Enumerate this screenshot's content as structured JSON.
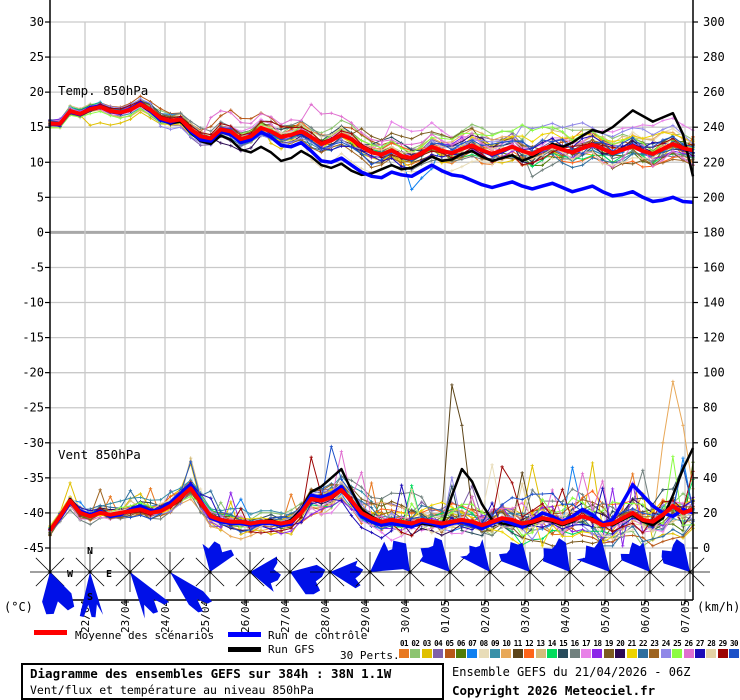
{
  "titles": {
    "temp_panel": "Temp. 850hPa",
    "wind_panel": "Vent 850hPa"
  },
  "axes": {
    "left_unit": "(°C)",
    "right_unit": "(km/h)",
    "left_ticks": [
      "30",
      "25",
      "20",
      "15",
      "10",
      "5",
      "0",
      "-5",
      "-10",
      "-15",
      "-20",
      "-25",
      "-30",
      "-35",
      "-40",
      "-45"
    ],
    "right_ticks": [
      "300",
      "280",
      "260",
      "240",
      "220",
      "200",
      "180",
      "160",
      "140",
      "120",
      "100",
      "80",
      "60",
      "40",
      "20",
      "0"
    ],
    "dates": [
      "22/04",
      "23/04",
      "24/04",
      "25/04",
      "26/04",
      "27/04",
      "28/04",
      "29/04",
      "30/04",
      "01/05",
      "02/05",
      "03/05",
      "04/05",
      "05/05",
      "06/05",
      "07/05"
    ],
    "compass": {
      "n": "N",
      "w": "W",
      "e": "E",
      "s": "S"
    }
  },
  "legend": {
    "mean_label": "Moyenne des scénarios",
    "control_label": "Run de contrôle",
    "gfs_label": "Run GFS",
    "perts_label": "30 Perts.",
    "mean_color": "#ff0000",
    "control_color": "#0000ff",
    "gfs_color": "#000000",
    "pert_numbers": [
      "01",
      "02",
      "03",
      "04",
      "05",
      "06",
      "07",
      "08",
      "09",
      "10",
      "11",
      "12",
      "13",
      "14",
      "15",
      "16",
      "17",
      "18",
      "19",
      "20",
      "21",
      "22",
      "23",
      "24",
      "25",
      "26",
      "27",
      "28",
      "29",
      "30"
    ],
    "pert_colors": [
      "#e87820",
      "#8cc470",
      "#e0c000",
      "#8060a8",
      "#b85818",
      "#507c08",
      "#1080f0",
      "#e8dcb8",
      "#3890a8",
      "#e8a858",
      "#5c4418",
      "#ff6418",
      "#d4bc7c",
      "#00dc5c",
      "#284c5c",
      "#70807e",
      "#e882e8",
      "#8c24e8",
      "#7c5c20",
      "#2c0a54",
      "#eed400",
      "#2e6e9e",
      "#9e6420",
      "#9088e8",
      "#8cfc44",
      "#e070d0",
      "#1c0cb8",
      "#e4d2a4",
      "#9c0404",
      "#1c50c8"
    ]
  },
  "footer": {
    "title": "Diagramme des ensembles GEFS sur 384h : 38N 1.1W",
    "subtitle": "Vent/flux et température au niveau 850hPa",
    "run_info": "Ensemble GEFS du 21/04/2026 - 06Z",
    "copyright": "Copyright 2026 Meteociel.fr"
  },
  "chart_data": [
    {
      "type": "line",
      "title": "Temp. 850hPa",
      "ylabel": "°C",
      "ylim": [
        -45,
        30
      ],
      "x_start": "21/04 06Z",
      "x_step_hours": 6,
      "n_points": 65,
      "grid": true,
      "series": [
        {
          "name": "Moyenne des scénarios",
          "color": "#ff0000",
          "values": [
            15.5,
            15.5,
            17.3,
            16.9,
            17.6,
            17.9,
            17.3,
            17.1,
            17.5,
            18.3,
            17.5,
            16.3,
            15.9,
            16.1,
            14.7,
            13.7,
            13.4,
            14.7,
            14.4,
            13.3,
            13.7,
            14.9,
            14.4,
            13.6,
            13.9,
            14.4,
            13.6,
            12.6,
            13.1,
            13.9,
            13.3,
            12.2,
            11.4,
            11.1,
            11.7,
            10.9,
            10.6,
            11.3,
            12.2,
            11.6,
            11.3,
            11.9,
            12.4,
            11.7,
            11.2,
            11.7,
            12.2,
            11.6,
            11.2,
            11.9,
            12.3,
            11.8,
            11.4,
            12.0,
            12.5,
            11.9,
            11.3,
            11.8,
            12.3,
            11.6,
            11.2,
            11.9,
            12.6,
            12.0,
            11.7
          ]
        },
        {
          "name": "Run de contrôle",
          "color": "#0000ff",
          "values": [
            15.5,
            15.4,
            17.2,
            16.8,
            17.8,
            18.0,
            17.2,
            17.0,
            17.6,
            18.5,
            17.3,
            16.0,
            15.7,
            16.2,
            14.4,
            13.2,
            13.0,
            14.5,
            14.0,
            12.8,
            13.2,
            14.3,
            13.6,
            12.4,
            12.2,
            12.8,
            11.6,
            10.2,
            10.0,
            10.6,
            9.6,
            8.6,
            8.0,
            7.8,
            8.6,
            8.2,
            8.0,
            8.8,
            9.6,
            8.8,
            8.2,
            8.0,
            7.4,
            6.8,
            6.4,
            6.8,
            7.2,
            6.6,
            6.2,
            6.6,
            7.0,
            6.4,
            5.8,
            6.2,
            6.6,
            5.8,
            5.2,
            5.4,
            5.8,
            5.0,
            4.4,
            4.6,
            5.0,
            4.4,
            4.3
          ]
        },
        {
          "name": "Run GFS",
          "color": "#000000",
          "values": [
            15.5,
            15.5,
            17.4,
            17.0,
            17.7,
            17.8,
            17.2,
            17.0,
            17.4,
            18.2,
            17.2,
            16.0,
            15.6,
            15.8,
            14.2,
            13.0,
            12.6,
            13.8,
            13.2,
            11.8,
            11.4,
            12.2,
            11.4,
            10.2,
            10.6,
            11.6,
            10.8,
            9.6,
            9.2,
            9.8,
            8.8,
            8.2,
            8.4,
            9.0,
            9.6,
            9.0,
            9.2,
            10.0,
            10.8,
            10.2,
            10.4,
            11.2,
            11.6,
            10.8,
            10.2,
            10.6,
            11.0,
            10.2,
            10.8,
            11.8,
            12.6,
            12.2,
            12.8,
            13.8,
            14.6,
            14.2,
            15.0,
            16.2,
            17.4,
            16.6,
            15.8,
            16.4,
            17.0,
            14.0,
            8.0
          ]
        }
      ],
      "ensemble": {
        "count": 30,
        "spread_start": 0.3,
        "spread_end": 1.6
      }
    },
    {
      "type": "line",
      "title": "Vent 850hPa",
      "ylabel": "km/h",
      "ylim": [
        0,
        300
      ],
      "x_start": "21/04 06Z",
      "x_step_hours": 6,
      "n_points": 65,
      "grid": true,
      "series": [
        {
          "name": "Moyenne des scénarios",
          "color": "#ff0000",
          "values": [
            10,
            18,
            27,
            20,
            18,
            20,
            19,
            20,
            21,
            22,
            20,
            21,
            24,
            29,
            34,
            26,
            18,
            16,
            15,
            15,
            14,
            15,
            15,
            14,
            15,
            20,
            28,
            27,
            29,
            33,
            27,
            20,
            17,
            15,
            16,
            15,
            14,
            16,
            15,
            14,
            15,
            16,
            15,
            13,
            15,
            17,
            16,
            14,
            15,
            17,
            16,
            14,
            16,
            18,
            16,
            13,
            14,
            17,
            20,
            16,
            15,
            19,
            24,
            20,
            22
          ]
        },
        {
          "name": "Run de contrôle",
          "color": "#0000ff",
          "values": [
            10,
            17,
            26,
            21,
            19,
            21,
            18,
            19,
            22,
            24,
            21,
            22,
            26,
            31,
            36,
            27,
            17,
            15,
            14,
            14,
            13,
            14,
            14,
            13,
            14,
            21,
            30,
            29,
            31,
            35,
            26,
            18,
            15,
            13,
            14,
            13,
            12,
            15,
            14,
            12,
            14,
            15,
            13,
            11,
            14,
            16,
            14,
            12,
            16,
            20,
            18,
            15,
            18,
            22,
            19,
            14,
            16,
            26,
            36,
            30,
            24,
            20,
            18,
            22,
            20
          ]
        },
        {
          "name": "Run GFS",
          "color": "#000000",
          "values": [
            10,
            18,
            28,
            21,
            18,
            20,
            18,
            19,
            21,
            23,
            20,
            22,
            25,
            30,
            35,
            26,
            17,
            15,
            14,
            14,
            13,
            15,
            16,
            14,
            16,
            22,
            32,
            35,
            40,
            45,
            33,
            22,
            18,
            15,
            14,
            13,
            12,
            14,
            13,
            12,
            30,
            45,
            38,
            25,
            16,
            14,
            13,
            12,
            14,
            16,
            15,
            13,
            15,
            18,
            17,
            14,
            13,
            16,
            19,
            15,
            13,
            17,
            30,
            45,
            57
          ]
        }
      ],
      "ensemble": {
        "count": 30,
        "spread_start": 1.6,
        "spread_end": 7.2
      }
    }
  ],
  "wind_roses": [
    {
      "angle": 165,
      "spread": 60,
      "radius": 42
    },
    {
      "angle": 178,
      "spread": 30,
      "radius": 45
    },
    {
      "angle": 145,
      "spread": 35,
      "radius": 48
    },
    {
      "angle": 135,
      "spread": 30,
      "radius": 50
    },
    {
      "angle": 20,
      "spread": 70,
      "radius": 30
    },
    {
      "angle": 95,
      "spread": 70,
      "radius": 30
    },
    {
      "angle": 110,
      "spread": 70,
      "radius": 34
    },
    {
      "angle": 95,
      "spread": 55,
      "radius": 32
    },
    {
      "angle": 55,
      "spread": 60,
      "radius": 32
    },
    {
      "angle": 322,
      "spread": 60,
      "radius": 34
    },
    {
      "angle": 318,
      "spread": 55,
      "radius": 36
    },
    {
      "angle": 322,
      "spread": 50,
      "radius": 32
    },
    {
      "angle": 318,
      "spread": 55,
      "radius": 34
    },
    {
      "angle": 322,
      "spread": 60,
      "radius": 34
    },
    {
      "angle": 318,
      "spread": 55,
      "radius": 34
    },
    {
      "angle": 320,
      "spread": 55,
      "radius": 33
    },
    {
      "angle": 318,
      "spread": 60,
      "radius": 34
    }
  ],
  "rose_color": "#0010e8"
}
